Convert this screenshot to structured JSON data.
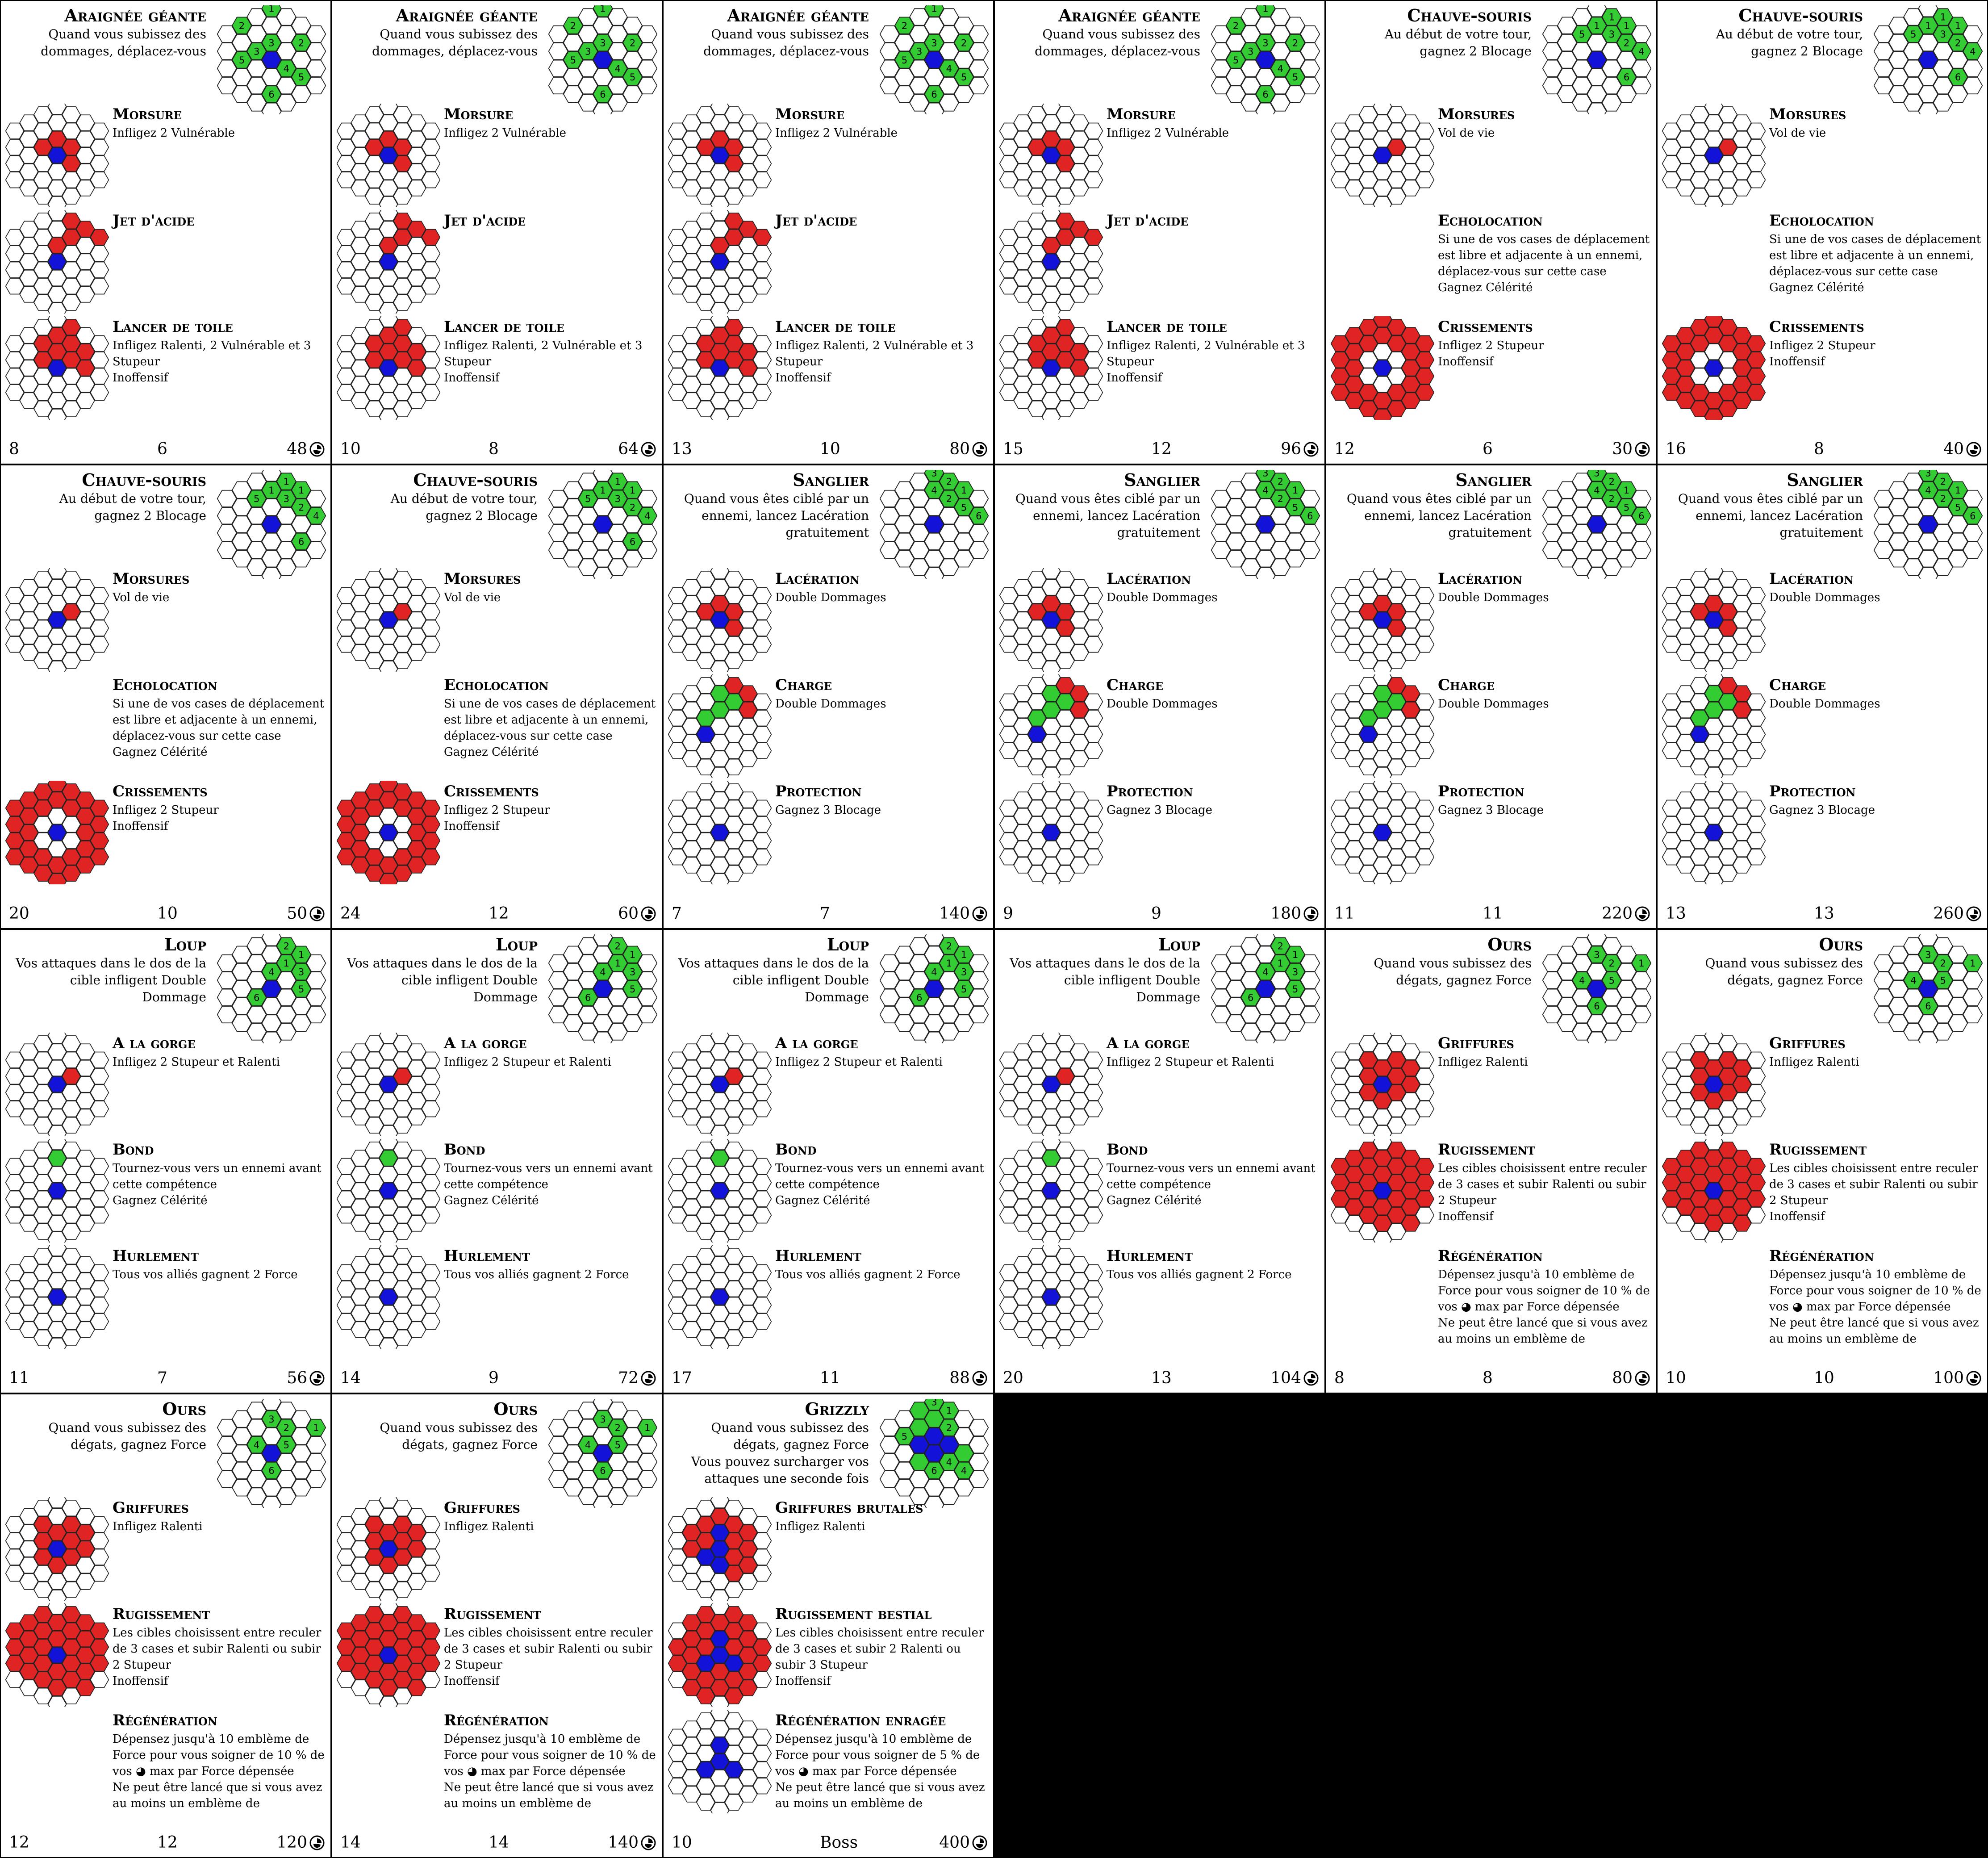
{
  "colors": {
    "attack": "#e02424",
    "self": "#1212d8",
    "move": "#33cc33",
    "empty": "#ffffff",
    "line": "#222222",
    "void": "#000000"
  },
  "currency_icon": "coin-hand-icon",
  "skill_shapes": {
    "bite": [
      [
        1,
        -1
      ],
      [
        2,
        -1
      ],
      [
        2,
        0
      ]
    ],
    "bite_small": [
      [
        1,
        -1
      ]
    ],
    "acid": [
      [
        2,
        -1
      ],
      [
        3,
        -2
      ],
      [
        4,
        -2
      ],
      [
        4,
        -3
      ],
      [
        5,
        -3
      ],
      [
        5,
        -4
      ],
      [
        6,
        -4
      ]
    ],
    "web": [
      [
        1,
        -2
      ],
      [
        2,
        -2
      ],
      [
        3,
        -2
      ],
      [
        1,
        -1
      ],
      [
        2,
        -1
      ],
      [
        3,
        -1
      ],
      [
        4,
        -1
      ],
      [
        2,
        0
      ],
      [
        3,
        0
      ]
    ],
    "screech": "ring2to3",
    "none": [],
    "laceration": [
      [
        1,
        -1
      ],
      [
        2,
        -1
      ],
      [
        2,
        0
      ]
    ],
    "charge_red": [
      [
        5,
        -4
      ],
      [
        6,
        -4
      ],
      [
        6,
        -3
      ]
    ],
    "charge_green": [
      [
        1,
        -1
      ],
      [
        2,
        -2
      ],
      [
        3,
        -2
      ],
      [
        4,
        -3
      ]
    ],
    "leap_green": [
      [
        1,
        -2
      ]
    ],
    "claws": [
      [
        0,
        -2
      ],
      [
        1,
        -2
      ],
      [
        -1,
        -1
      ],
      [
        1,
        -1
      ],
      [
        2,
        -1
      ],
      [
        -1,
        0
      ],
      [
        1,
        0
      ],
      [
        2,
        0
      ],
      [
        0,
        1
      ],
      [
        1,
        1
      ]
    ],
    "roar": "radius3",
    "brutal_claws": "brutal",
    "bestial_roar": "bestial",
    "grizzly_self": "bigself"
  },
  "cards": [
    {
      "title": "Araignée géante",
      "passive": "Quand vous subissez des dommages, déplacez-vous",
      "move": "spider",
      "skills": [
        {
          "name": "Morsure",
          "text": "Infligez 2 Vulnérable",
          "shape": "bite"
        },
        {
          "name": "Jet d'acide",
          "text": "",
          "shape": "acid"
        },
        {
          "name": "Lancer de toile",
          "text": "Infligez Ralenti, 2 Vulnérable et 3 Stupeur\nInoffensif",
          "shape": "web"
        }
      ],
      "hp": "8",
      "xp": "6",
      "gold": "48"
    },
    {
      "title": "Araignée géante",
      "passive": "Quand vous subissez des dommages, déplacez-vous",
      "move": "spider",
      "skills": [
        {
          "name": "Morsure",
          "text": "Infligez 2 Vulnérable",
          "shape": "bite"
        },
        {
          "name": "Jet d'acide",
          "text": "",
          "shape": "acid"
        },
        {
          "name": "Lancer de toile",
          "text": "Infligez Ralenti, 2 Vulnérable et 3 Stupeur\nInoffensif",
          "shape": "web"
        }
      ],
      "hp": "10",
      "xp": "8",
      "gold": "64"
    },
    {
      "title": "Araignée géante",
      "passive": "Quand vous subissez des dommages, déplacez-vous",
      "move": "spider",
      "skills": [
        {
          "name": "Morsure",
          "text": "Infligez 2 Vulnérable",
          "shape": "bite"
        },
        {
          "name": "Jet d'acide",
          "text": "",
          "shape": "acid"
        },
        {
          "name": "Lancer de toile",
          "text": "Infligez Ralenti, 2 Vulnérable et 3 Stupeur\nInoffensif",
          "shape": "web"
        }
      ],
      "hp": "13",
      "xp": "10",
      "gold": "80"
    },
    {
      "title": "Araignée géante",
      "passive": "Quand vous subissez des dommages, déplacez-vous",
      "move": "spider",
      "skills": [
        {
          "name": "Morsure",
          "text": "Infligez 2 Vulnérable",
          "shape": "bite"
        },
        {
          "name": "Jet d'acide",
          "text": "",
          "shape": "acid"
        },
        {
          "name": "Lancer de toile",
          "text": "Infligez Ralenti, 2 Vulnérable et 3 Stupeur\nInoffensif",
          "shape": "web"
        }
      ],
      "hp": "15",
      "xp": "12",
      "gold": "96"
    },
    {
      "title": "Chauve-souris",
      "passive": "Au début de votre tour, gagnez 2 Blocage",
      "move": "bat",
      "skills": [
        {
          "name": "Morsures",
          "text": "Vol de vie",
          "shape": "bite_small"
        },
        {
          "name": "Echolocation",
          "text": "Si une de vos cases de déplacement est libre et adjacente à un ennemi, déplacez-vous sur cette case\nGagnez Célérité",
          "shape": "hidden"
        },
        {
          "name": "Crissements",
          "text": "Infligez 2 Stupeur\nInoffensif",
          "shape": "screech"
        }
      ],
      "hp": "12",
      "xp": "6",
      "gold": "30"
    },
    {
      "title": "Chauve-souris",
      "passive": "Au début de votre tour, gagnez 2 Blocage",
      "move": "bat",
      "skills": [
        {
          "name": "Morsures",
          "text": "Vol de vie",
          "shape": "bite_small"
        },
        {
          "name": "Echolocation",
          "text": "Si une de vos cases de déplacement est libre et adjacente à un ennemi, déplacez-vous sur cette case\nGagnez Célérité",
          "shape": "hidden"
        },
        {
          "name": "Crissements",
          "text": "Infligez 2 Stupeur\nInoffensif",
          "shape": "screech"
        }
      ],
      "hp": "16",
      "xp": "8",
      "gold": "40"
    },
    {
      "title": "Chauve-souris",
      "passive": "Au début de votre tour, gagnez 2 Blocage",
      "move": "bat",
      "skills": [
        {
          "name": "Morsures",
          "text": "Vol de vie",
          "shape": "bite_small"
        },
        {
          "name": "Echolocation",
          "text": "Si une de vos cases de déplacement est libre et adjacente à un ennemi, déplacez-vous sur cette case\nGagnez Célérité",
          "shape": "hidden"
        },
        {
          "name": "Crissements",
          "text": "Infligez 2 Stupeur\nInoffensif",
          "shape": "screech"
        }
      ],
      "hp": "20",
      "xp": "10",
      "gold": "50"
    },
    {
      "title": "Chauve-souris",
      "passive": "Au début de votre tour, gagnez 2 Blocage",
      "move": "bat",
      "skills": [
        {
          "name": "Morsures",
          "text": "Vol de vie",
          "shape": "bite_small"
        },
        {
          "name": "Echolocation",
          "text": "Si une de vos cases de déplacement est libre et adjacente à un ennemi, déplacez-vous sur cette case\nGagnez Célérité",
          "shape": "hidden"
        },
        {
          "name": "Crissements",
          "text": "Infligez 2 Stupeur\nInoffensif",
          "shape": "screech"
        }
      ],
      "hp": "24",
      "xp": "12",
      "gold": "60"
    },
    {
      "title": "Sanglier",
      "passive": "Quand vous êtes ciblé par un ennemi, lancez Lacération gratuitement",
      "move": "boar",
      "skills": [
        {
          "name": "Lacération",
          "text": "Double Dommages",
          "shape": "laceration"
        },
        {
          "name": "Charge",
          "text": "Double Dommages",
          "shape": "charge"
        },
        {
          "name": "Protection",
          "text": "Gagnez 3 Blocage",
          "shape": "none"
        }
      ],
      "hp": "7",
      "xp": "7",
      "gold": "140"
    },
    {
      "title": "Sanglier",
      "passive": "Quand vous êtes ciblé par un ennemi, lancez Lacération gratuitement",
      "move": "boar",
      "skills": [
        {
          "name": "Lacération",
          "text": "Double Dommages",
          "shape": "laceration"
        },
        {
          "name": "Charge",
          "text": "Double Dommages",
          "shape": "charge"
        },
        {
          "name": "Protection",
          "text": "Gagnez 3 Blocage",
          "shape": "none"
        }
      ],
      "hp": "9",
      "xp": "9",
      "gold": "180"
    },
    {
      "title": "Sanglier",
      "passive": "Quand vous êtes ciblé par un ennemi, lancez Lacération gratuitement",
      "move": "boar",
      "skills": [
        {
          "name": "Lacération",
          "text": "Double Dommages",
          "shape": "laceration"
        },
        {
          "name": "Charge",
          "text": "Double Dommages",
          "shape": "charge"
        },
        {
          "name": "Protection",
          "text": "Gagnez 3 Blocage",
          "shape": "none"
        }
      ],
      "hp": "11",
      "xp": "11",
      "gold": "220"
    },
    {
      "title": "Sanglier",
      "passive": "Quand vous êtes ciblé par un ennemi, lancez Lacération gratuitement",
      "move": "boar",
      "skills": [
        {
          "name": "Lacération",
          "text": "Double Dommages",
          "shape": "laceration"
        },
        {
          "name": "Charge",
          "text": "Double Dommages",
          "shape": "charge"
        },
        {
          "name": "Protection",
          "text": "Gagnez 3 Blocage",
          "shape": "none"
        }
      ],
      "hp": "13",
      "xp": "13",
      "gold": "260"
    },
    {
      "title": "Loup",
      "passive": "Vos attaques dans le dos de la cible infligent Double Dommage",
      "move": "wolf",
      "skills": [
        {
          "name": "A la gorge",
          "text": "Infligez 2 Stupeur et Ralenti",
          "shape": "bite_small"
        },
        {
          "name": "Bond",
          "text": "Tournez-vous vers un ennemi avant cette compétence\nGagnez Célérité",
          "shape": "leap"
        },
        {
          "name": "Hurlement",
          "text": "Tous vos alliés gagnent 2 Force",
          "shape": "none"
        }
      ],
      "hp": "11",
      "xp": "7",
      "gold": "56"
    },
    {
      "title": "Loup",
      "passive": "Vos attaques dans le dos de la cible infligent Double Dommage",
      "move": "wolf",
      "skills": [
        {
          "name": "A la gorge",
          "text": "Infligez 2 Stupeur et Ralenti",
          "shape": "bite_small"
        },
        {
          "name": "Bond",
          "text": "Tournez-vous vers un ennemi avant cette compétence\nGagnez Célérité",
          "shape": "leap"
        },
        {
          "name": "Hurlement",
          "text": "Tous vos alliés gagnent 2 Force",
          "shape": "none"
        }
      ],
      "hp": "14",
      "xp": "9",
      "gold": "72"
    },
    {
      "title": "Loup",
      "passive": "Vos attaques dans le dos de la cible infligent Double Dommage",
      "move": "wolf",
      "skills": [
        {
          "name": "A la gorge",
          "text": "Infligez 2 Stupeur et Ralenti",
          "shape": "bite_small"
        },
        {
          "name": "Bond",
          "text": "Tournez-vous vers un ennemi avant cette compétence\nGagnez Célérité",
          "shape": "leap"
        },
        {
          "name": "Hurlement",
          "text": "Tous vos alliés gagnent 2 Force",
          "shape": "none"
        }
      ],
      "hp": "17",
      "xp": "11",
      "gold": "88"
    },
    {
      "title": "Loup",
      "passive": "Vos attaques dans le dos de la cible infligent Double Dommage",
      "move": "wolf",
      "skills": [
        {
          "name": "A la gorge",
          "text": "Infligez 2 Stupeur et Ralenti",
          "shape": "bite_small"
        },
        {
          "name": "Bond",
          "text": "Tournez-vous vers un ennemi avant cette compétence\nGagnez Célérité",
          "shape": "leap"
        },
        {
          "name": "Hurlement",
          "text": "Tous vos alliés gagnent 2 Force",
          "shape": "none"
        }
      ],
      "hp": "20",
      "xp": "13",
      "gold": "104"
    },
    {
      "title": "Ours",
      "passive": "Quand vous subissez des dégats, gagnez Force",
      "move": "bear",
      "skills": [
        {
          "name": "Griffures",
          "text": "Infligez Ralenti",
          "shape": "claws"
        },
        {
          "name": "Rugissement",
          "text": "Les cibles choisissent entre reculer de 3 cases et subir Ralenti ou subir 2 Stupeur\nInoffensif",
          "shape": "roar"
        },
        {
          "name": "Régénération",
          "text": "Dépensez jusqu'à 10 emblème de Force pour vous soigner de 10 % de vos ◕ max par Force dépensée\nNe peut être lancé que si vous avez au moins un emblème de",
          "shape": "hidden"
        }
      ],
      "hp": "8",
      "xp": "8",
      "gold": "80"
    },
    {
      "title": "Ours",
      "passive": "Quand vous subissez des dégats, gagnez Force",
      "move": "bear",
      "skills": [
        {
          "name": "Griffures",
          "text": "Infligez Ralenti",
          "shape": "claws"
        },
        {
          "name": "Rugissement",
          "text": "Les cibles choisissent entre reculer de 3 cases et subir Ralenti ou subir 2 Stupeur\nInoffensif",
          "shape": "roar"
        },
        {
          "name": "Régénération",
          "text": "Dépensez jusqu'à 10 emblème de Force pour vous soigner de 10 % de vos ◕ max par Force dépensée\nNe peut être lancé que si vous avez au moins un emblème de",
          "shape": "hidden"
        }
      ],
      "hp": "10",
      "xp": "10",
      "gold": "100"
    },
    {
      "title": "Ours",
      "passive": "Quand vous subissez des dégats, gagnez Force",
      "move": "bear",
      "skills": [
        {
          "name": "Griffures",
          "text": "Infligez Ralenti",
          "shape": "claws"
        },
        {
          "name": "Rugissement",
          "text": "Les cibles choisissent entre reculer de 3 cases et subir Ralenti ou subir 2 Stupeur\nInoffensif",
          "shape": "roar"
        },
        {
          "name": "Régénération",
          "text": "Dépensez jusqu'à 10 emblème de Force pour vous soigner de 10 % de vos ◕ max par Force dépensée\nNe peut être lancé que si vous avez au moins un emblème de",
          "shape": "hidden"
        }
      ],
      "hp": "12",
      "xp": "12",
      "gold": "120"
    },
    {
      "title": "Ours",
      "passive": "Quand vous subissez des dégats, gagnez Force",
      "move": "bear",
      "skills": [
        {
          "name": "Griffures",
          "text": "Infligez Ralenti",
          "shape": "claws"
        },
        {
          "name": "Rugissement",
          "text": "Les cibles choisissent entre reculer de 3 cases et subir Ralenti ou subir 2 Stupeur\nInoffensif",
          "shape": "roar"
        },
        {
          "name": "Régénération",
          "text": "Dépensez jusqu'à 10 emblème de Force pour vous soigner de 10 % de vos ◕ max par Force dépensée\nNe peut être lancé que si vous avez au moins un emblème de",
          "shape": "hidden"
        }
      ],
      "hp": "14",
      "xp": "14",
      "gold": "140"
    },
    {
      "title": "Grizzly",
      "passive": "Quand vous subissez des dégats, gagnez Force\nVous pouvez surcharger vos attaques une seconde fois",
      "move": "grizzly",
      "skills": [
        {
          "name": "Griffures brutales",
          "text": "Infligez Ralenti",
          "shape": "brutal_claws"
        },
        {
          "name": "Rugissement bestial",
          "text": "Les cibles choisissent entre reculer de 3 cases et subir 2 Ralenti ou subir 3 Stupeur\nInoffensif",
          "shape": "bestial_roar"
        },
        {
          "name": "Régénération enragée",
          "text": "Dépensez jusqu'à 10 emblème de Force pour vous soigner de 5 % de vos ◕ max par Force dépensée\nNe peut être lancé que si vous avez au moins un emblème de",
          "shape": "grizzly_self"
        }
      ],
      "hp": "10",
      "xp": "Boss",
      "gold": "400"
    }
  ]
}
